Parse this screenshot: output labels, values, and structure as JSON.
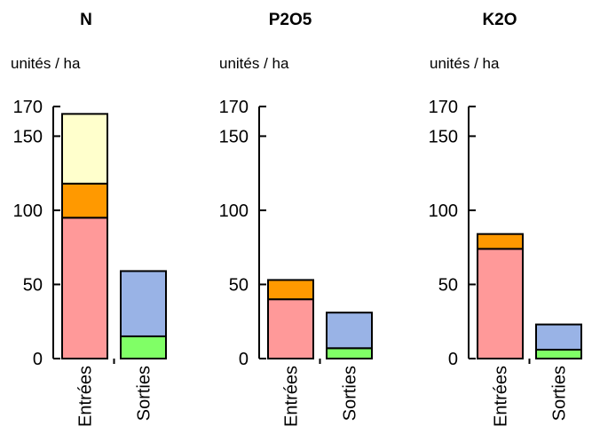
{
  "chart_data": [
    {
      "type": "bar",
      "stacked": true,
      "title": "N",
      "ylabel": "unités / ha",
      "ylim": [
        0,
        170
      ],
      "yticks": [
        0,
        50,
        100,
        150,
        170
      ],
      "categories": [
        "Entrées",
        "Sorties"
      ],
      "series": [
        {
          "values": [
            95,
            0
          ],
          "color": "#ff9999"
        },
        {
          "values": [
            23,
            0
          ],
          "color": "#ff9900"
        },
        {
          "values": [
            47,
            0
          ],
          "color": "#ffffcc"
        },
        {
          "values": [
            0,
            15
          ],
          "color": "#80ff66"
        },
        {
          "values": [
            0,
            44
          ],
          "color": "#99b3e6"
        }
      ]
    },
    {
      "type": "bar",
      "stacked": true,
      "title": "P2O5",
      "ylabel": "unités / ha",
      "ylim": [
        0,
        170
      ],
      "yticks": [
        0,
        50,
        100,
        150,
        170
      ],
      "categories": [
        "Entrées",
        "Sorties"
      ],
      "series": [
        {
          "values": [
            40,
            0
          ],
          "color": "#ff9999"
        },
        {
          "values": [
            13,
            0
          ],
          "color": "#ff9900"
        },
        {
          "values": [
            0,
            0
          ],
          "color": "#ffffcc"
        },
        {
          "values": [
            0,
            7
          ],
          "color": "#80ff66"
        },
        {
          "values": [
            0,
            24
          ],
          "color": "#99b3e6"
        }
      ]
    },
    {
      "type": "bar",
      "stacked": true,
      "title": "K2O",
      "ylabel": "unités / ha",
      "ylim": [
        0,
        170
      ],
      "yticks": [
        0,
        50,
        100,
        150,
        170
      ],
      "categories": [
        "Entrées",
        "Sorties"
      ],
      "series": [
        {
          "values": [
            74,
            0
          ],
          "color": "#ff9999"
        },
        {
          "values": [
            10,
            0
          ],
          "color": "#ff9900"
        },
        {
          "values": [
            0,
            0
          ],
          "color": "#ffffcc"
        },
        {
          "values": [
            0,
            6
          ],
          "color": "#80ff66"
        },
        {
          "values": [
            0,
            17
          ],
          "color": "#99b3e6"
        }
      ]
    }
  ]
}
